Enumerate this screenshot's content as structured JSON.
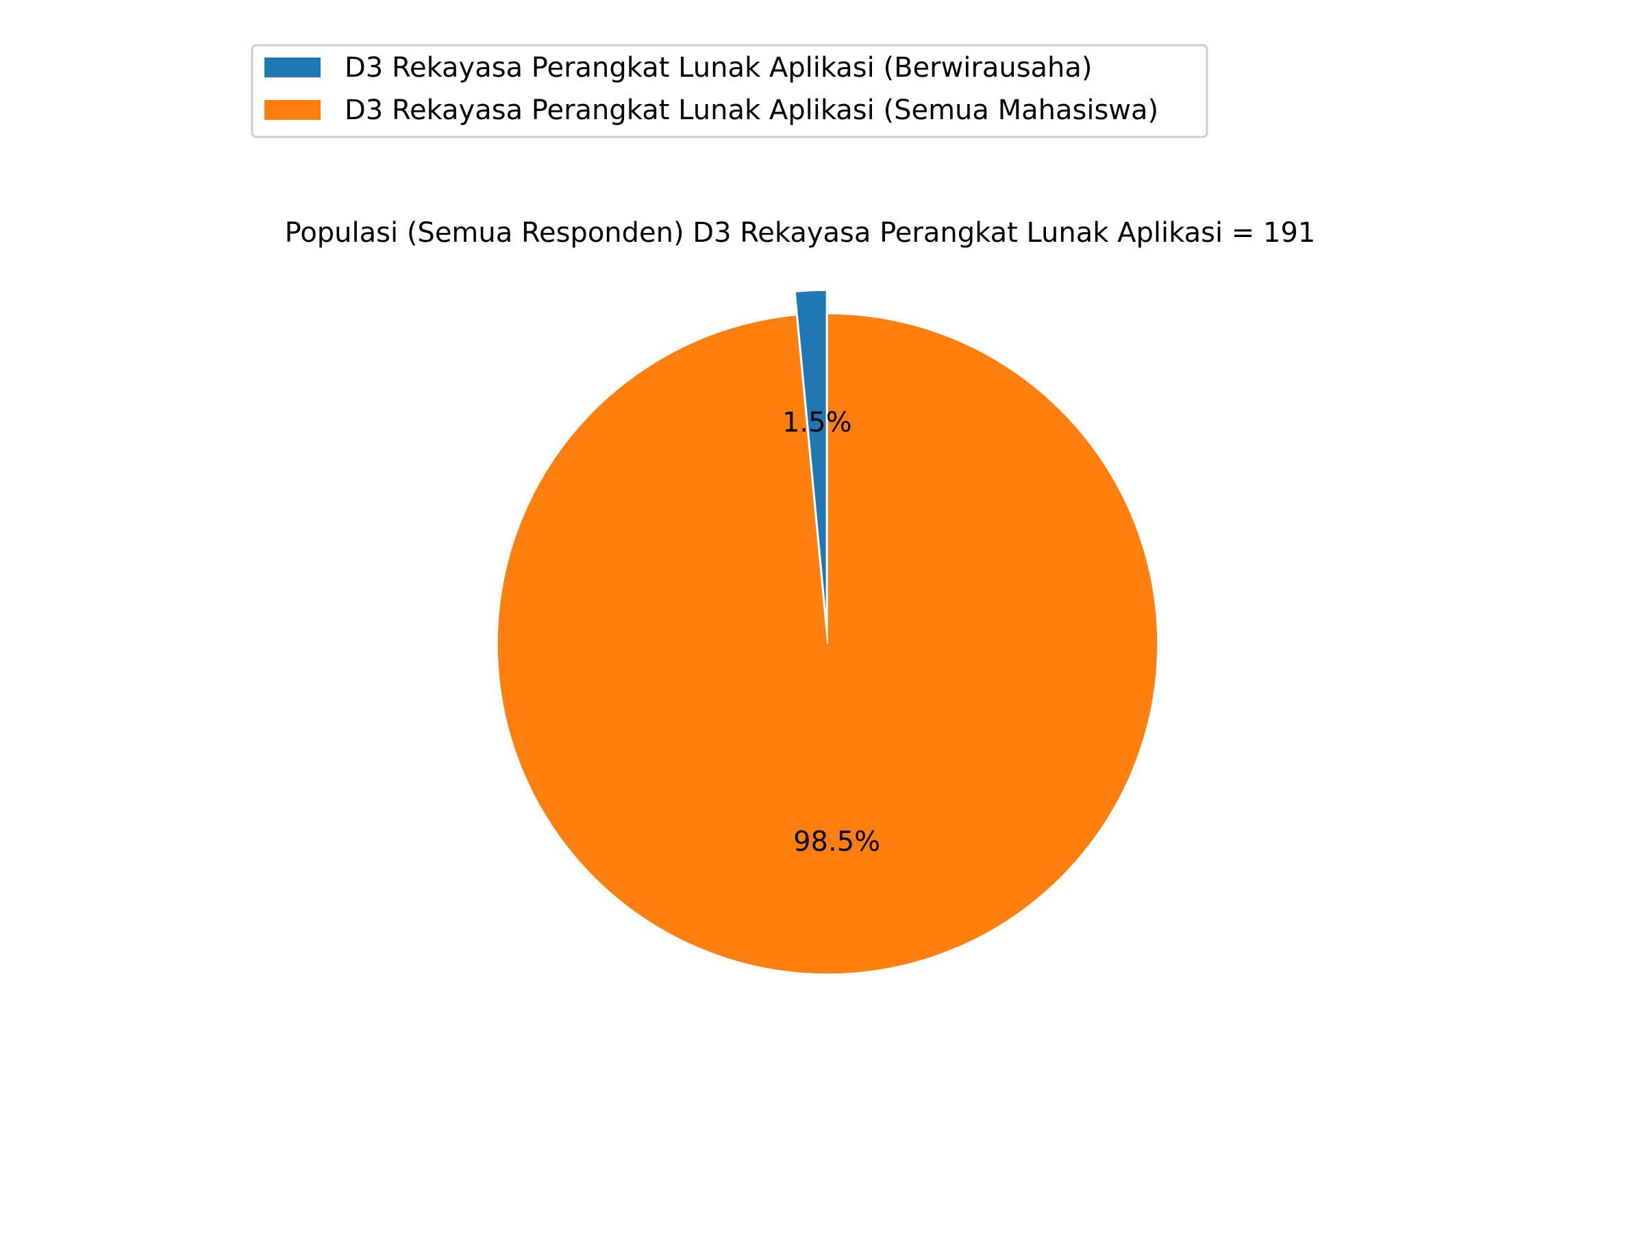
{
  "chart_data": {
    "type": "pie",
    "title": "Populasi (Semua Responden) D3 Rekayasa Perangkat Lunak Aplikasi = 191",
    "slices": [
      {
        "label": "D3 Rekayasa Perangkat Lunak Aplikasi (Berwirausaha)",
        "value": 1.5,
        "pct_label": "1.5%",
        "color": "#1f77b4",
        "exploded": true
      },
      {
        "label": "D3 Rekayasa Perangkat Lunak Aplikasi (Semua Mahasiswa)",
        "value": 98.5,
        "pct_label": "98.5%",
        "color": "#ff7f0e",
        "exploded": false
      }
    ],
    "start_angle_deg": 90,
    "direction": "counterclockwise",
    "legend_position": "top-left"
  }
}
